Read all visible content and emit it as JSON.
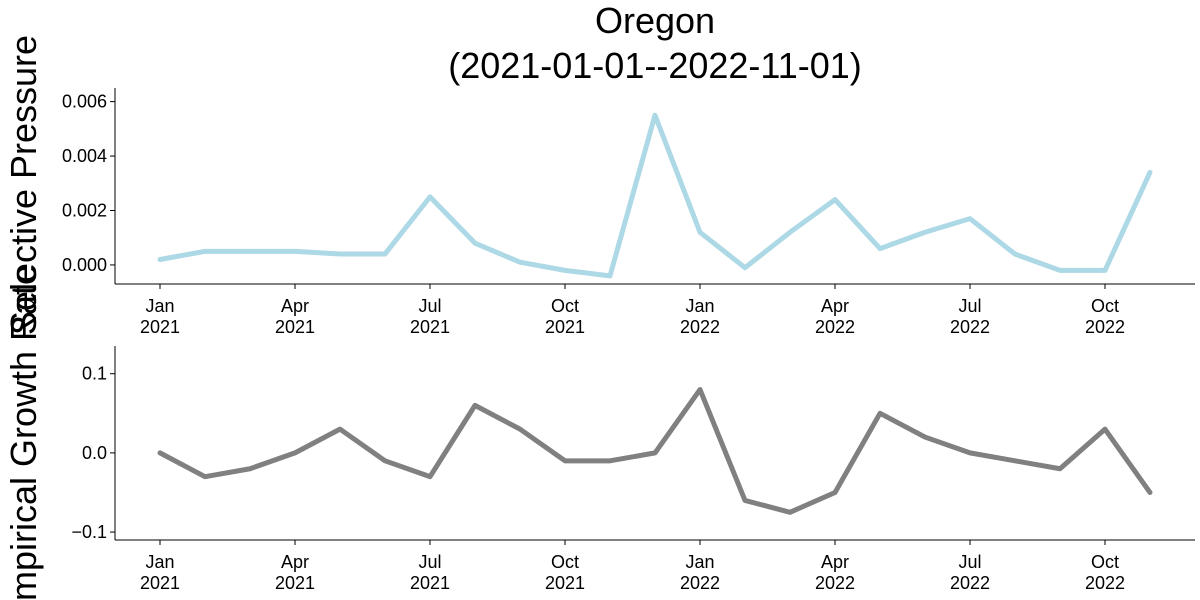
{
  "chart_data": [
    {
      "type": "line",
      "title": "Oregon",
      "subtitle": "(2021-01-01--2022-11-01)",
      "ylabel": "Selective Pressure",
      "x": [
        "2021-01",
        "2021-02",
        "2021-03",
        "2021-04",
        "2021-05",
        "2021-06",
        "2021-07",
        "2021-08",
        "2021-09",
        "2021-10",
        "2021-11",
        "2021-12",
        "2022-01",
        "2022-02",
        "2022-03",
        "2022-04",
        "2022-05",
        "2022-06",
        "2022-07",
        "2022-08",
        "2022-09",
        "2022-10",
        "2022-11"
      ],
      "series": [
        {
          "name": "Selective Pressure",
          "color": "#add8e6",
          "values": [
            0.0002,
            0.0005,
            0.0005,
            0.0005,
            0.0004,
            0.0004,
            0.0025,
            0.0008,
            0.0001,
            -0.0002,
            -0.0004,
            0.0055,
            0.0012,
            -0.0001,
            0.0012,
            0.0024,
            0.0006,
            0.0012,
            0.0017,
            0.0004,
            -0.0002,
            -0.0002,
            0.0034
          ]
        }
      ],
      "xlim": [
        "2020-12",
        "2022-12"
      ],
      "xticks": [
        {
          "value": "2021-01",
          "label": "Jan 2021"
        },
        {
          "value": "2021-04",
          "label": "Apr 2021"
        },
        {
          "value": "2021-07",
          "label": "Jul 2021"
        },
        {
          "value": "2021-10",
          "label": "Oct 2021"
        },
        {
          "value": "2022-01",
          "label": "Jan 2022"
        },
        {
          "value": "2022-04",
          "label": "Apr 2022"
        },
        {
          "value": "2022-07",
          "label": "Jul 2022"
        },
        {
          "value": "2022-10",
          "label": "Oct 2022"
        }
      ],
      "ylim": [
        -0.0007,
        0.0065
      ],
      "yticks": [
        {
          "value": 0,
          "label": "0.000"
        },
        {
          "value": 0.002,
          "label": "0.002"
        },
        {
          "value": 0.004,
          "label": "0.004"
        },
        {
          "value": 0.006,
          "label": "0.006"
        }
      ]
    },
    {
      "type": "line",
      "ylabel": "Empirical Growth Rate",
      "x": [
        "2021-01",
        "2021-02",
        "2021-03",
        "2021-04",
        "2021-05",
        "2021-06",
        "2021-07",
        "2021-08",
        "2021-09",
        "2021-10",
        "2021-11",
        "2021-12",
        "2022-01",
        "2022-02",
        "2022-03",
        "2022-04",
        "2022-05",
        "2022-06",
        "2022-07",
        "2022-08",
        "2022-09",
        "2022-10",
        "2022-11"
      ],
      "series": [
        {
          "name": "Empirical Growth Rate",
          "color": "#808080",
          "values": [
            0.0,
            -0.03,
            -0.02,
            0.0,
            0.03,
            -0.01,
            -0.03,
            0.06,
            0.03,
            -0.01,
            -0.01,
            0.0,
            0.08,
            -0.06,
            -0.075,
            -0.05,
            0.05,
            0.02,
            0.0,
            -0.01,
            -0.02,
            0.03,
            -0.05
          ]
        }
      ],
      "xlim": [
        "2020-12",
        "2022-12"
      ],
      "xticks": [
        {
          "value": "2021-01",
          "label": "Jan 2021"
        },
        {
          "value": "2021-04",
          "label": "Apr 2021"
        },
        {
          "value": "2021-07",
          "label": "Jul 2021"
        },
        {
          "value": "2021-10",
          "label": "Oct 2021"
        },
        {
          "value": "2022-01",
          "label": "Jan 2022"
        },
        {
          "value": "2022-04",
          "label": "Apr 2022"
        },
        {
          "value": "2022-07",
          "label": "Jul 2022"
        },
        {
          "value": "2022-10",
          "label": "Oct 2022"
        }
      ],
      "ylim": [
        -0.11,
        0.135
      ],
      "yticks": [
        {
          "value": -0.1,
          "label": "−0.1"
        },
        {
          "value": 0,
          "label": "0.0"
        },
        {
          "value": 0.1,
          "label": "0.1"
        }
      ]
    }
  ]
}
